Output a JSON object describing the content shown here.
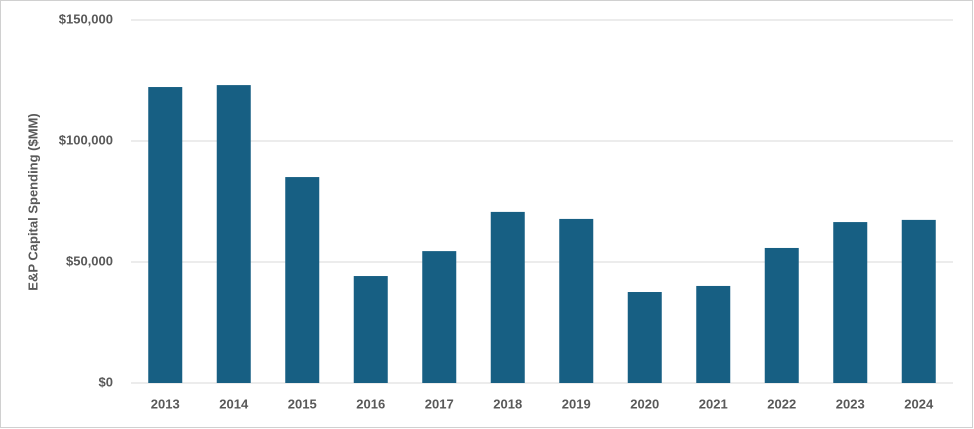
{
  "chart_data": {
    "type": "bar",
    "y_label": "E&P Capital Spending ($MM)",
    "categories": [
      "2013",
      "2014",
      "2015",
      "2016",
      "2017",
      "2018",
      "2019",
      "2020",
      "2021",
      "2022",
      "2023",
      "2024"
    ],
    "values": [
      122300,
      123100,
      85100,
      44200,
      54500,
      70700,
      67800,
      37600,
      40100,
      55800,
      66500,
      67400
    ],
    "color": "#175f83",
    "ylim": [
      0,
      150000
    ],
    "yticks": [
      {
        "value": 0,
        "label": "$0"
      },
      {
        "value": 50000,
        "label": "$50,000"
      },
      {
        "value": 100000,
        "label": "$100,000"
      },
      {
        "value": 150000,
        "label": "$150,000"
      }
    ],
    "grid": true
  }
}
